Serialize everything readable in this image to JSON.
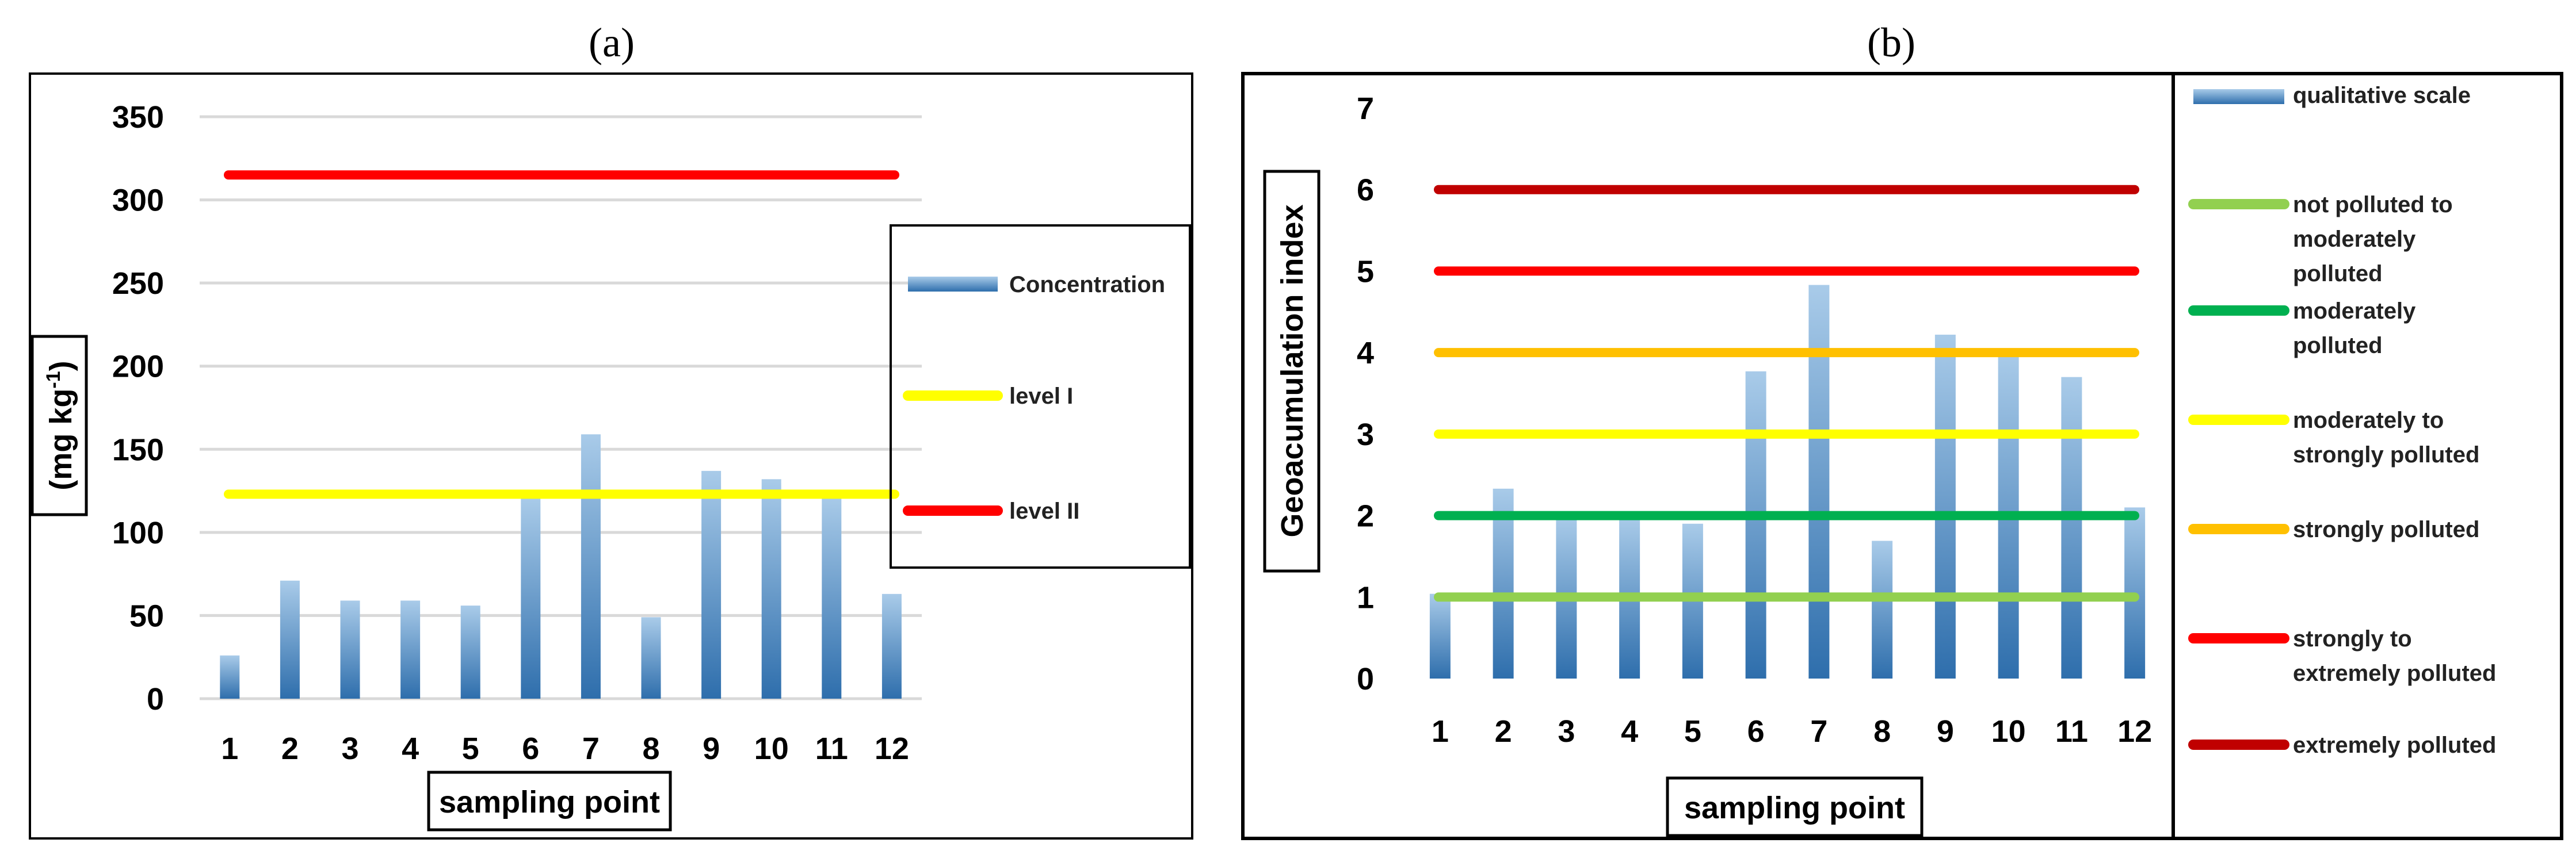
{
  "panels": {
    "a": {
      "label": "(a)"
    },
    "b": {
      "label": "(b)"
    }
  },
  "colors": {
    "bar_top": "#a9cbe9",
    "bar_bottom": "#2e6eac",
    "grid": "#d9d9d9",
    "yellow": "#ffff00",
    "red": "#ff0000",
    "light_green": "#92d050",
    "green": "#00b050",
    "orange": "#ffc000",
    "dark_red": "#c00000"
  },
  "chart_data": [
    {
      "id": "a",
      "type": "bar",
      "title": "(a)",
      "xlabel": "sampling point",
      "ylabel": "(mg kg-1)",
      "ylabel_main": "(mg kg",
      "ylabel_sup": "-1",
      "ylabel_close": ")",
      "ylim": [
        0,
        350
      ],
      "yticks": [
        0,
        50,
        100,
        150,
        200,
        250,
        300,
        350
      ],
      "grid": true,
      "categories": [
        "1",
        "2",
        "3",
        "4",
        "5",
        "6",
        "7",
        "8",
        "9",
        "10",
        "11",
        "12"
      ],
      "series": [
        {
          "name": "Concentration",
          "kind": "bar",
          "values": [
            26,
            71,
            59,
            59,
            56,
            121,
            159,
            49,
            137,
            132,
            122,
            63
          ]
        }
      ],
      "reference_lines": [
        {
          "name": "level I",
          "value": 123,
          "color": "#ffff00"
        },
        {
          "name": "level II",
          "value": 315,
          "color": "#ff0000"
        }
      ],
      "legend": {
        "placement": "right",
        "entries": [
          "Concentration",
          "level I",
          "level II"
        ]
      }
    },
    {
      "id": "b",
      "type": "bar",
      "title": "(b)",
      "xlabel": "sampling point",
      "ylabel": "Geoacumulation index",
      "ylim": [
        0,
        7
      ],
      "yticks": [
        0,
        1,
        2,
        3,
        4,
        5,
        6,
        7
      ],
      "grid": false,
      "categories": [
        "1",
        "2",
        "3",
        "4",
        "5",
        "6",
        "7",
        "8",
        "9",
        "10",
        "11",
        "12"
      ],
      "series": [
        {
          "name": "qualitative scale",
          "kind": "bar",
          "values": [
            1.04,
            2.33,
            1.98,
            1.98,
            1.9,
            3.77,
            4.83,
            1.69,
            4.22,
            4.0,
            3.7,
            2.1
          ]
        }
      ],
      "reference_lines": [
        {
          "name": "not polluted to moderately polluted",
          "value": 1,
          "color": "#92d050"
        },
        {
          "name": "moderately polluted",
          "value": 2,
          "color": "#00b050"
        },
        {
          "name": "moderately to strongly polluted",
          "value": 3,
          "color": "#ffff00"
        },
        {
          "name": "strongly polluted",
          "value": 4,
          "color": "#ffc000"
        },
        {
          "name": "strongly to extremely polluted",
          "value": 5,
          "color": "#ff0000"
        },
        {
          "name": "extremely polluted",
          "value": 6,
          "color": "#c00000"
        }
      ],
      "legend": {
        "placement": "right",
        "entries": [
          [
            "qualitative scale"
          ],
          [
            "not polluted to",
            "moderately",
            "polluted"
          ],
          [
            "moderately",
            "polluted"
          ],
          [
            "moderately to",
            "strongly polluted"
          ],
          [
            "strongly polluted"
          ],
          [
            "strongly to",
            "extremely polluted"
          ],
          [
            "extremely polluted"
          ]
        ]
      }
    }
  ]
}
